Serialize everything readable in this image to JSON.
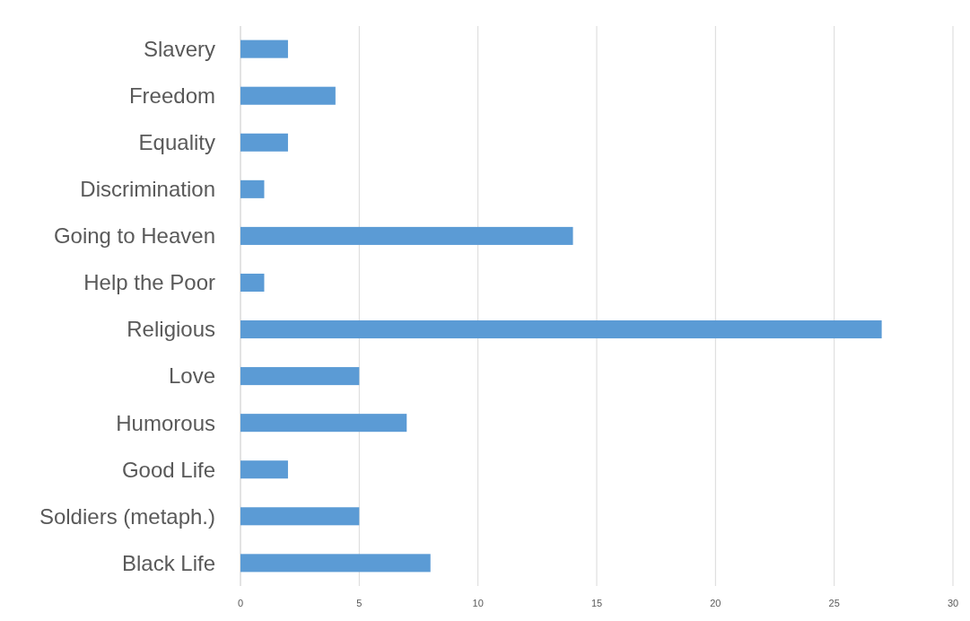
{
  "chart_data": {
    "type": "bar",
    "orientation": "horizontal",
    "categories": [
      "Slavery",
      "Freedom",
      "Equality",
      "Discrimination",
      "Going to Heaven",
      "Help the Poor",
      "Religious",
      "Love",
      "Humorous",
      "Good Life",
      "Soldiers (metaph.)",
      "Black Life"
    ],
    "values": [
      2,
      4,
      2,
      1,
      14,
      1,
      27,
      5,
      7,
      2,
      5,
      8
    ],
    "color": "#5b9bd5",
    "xlim": [
      0,
      30
    ],
    "xticks": [
      0,
      5,
      10,
      15,
      20,
      25,
      30
    ],
    "grid": "x"
  }
}
